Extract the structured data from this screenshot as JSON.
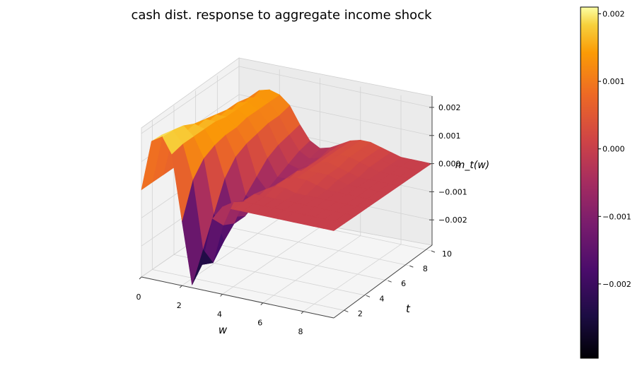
{
  "chart_data": {
    "type": "surface3d",
    "title": "cash dist. response to aggregate income shock",
    "xlabel": "w",
    "ylabel": "t",
    "zlabel": "m_t(w)",
    "xlim": [
      0,
      9.5
    ],
    "ylim": [
      1,
      10
    ],
    "zlim": [
      -0.0031,
      0.0022
    ],
    "xticks": [
      0,
      2,
      4,
      6,
      8
    ],
    "yticks": [
      2,
      4,
      6,
      8,
      10
    ],
    "zticks": [
      -0.002,
      -0.001,
      0.0,
      0.001,
      0.002
    ],
    "zticklabels": [
      "−0.002",
      "−0.001",
      "0.000",
      "0.001",
      "0.002"
    ],
    "colormap": "inferno",
    "colorbar": {
      "range": [
        -0.0031,
        0.0021
      ],
      "ticks": [
        -0.002,
        -0.001,
        0.0,
        0.001,
        0.002
      ],
      "ticklabels": [
        "−0.002",
        "−0.001",
        "0.000",
        "0.001",
        "0.002"
      ]
    },
    "surface": {
      "w_values": [
        0,
        0.5,
        1.0,
        1.5,
        2.0,
        2.5,
        3.0,
        3.5,
        4.0,
        4.5,
        5.0,
        5.5,
        6.0,
        6.5,
        7.0,
        7.5,
        8.0,
        8.5,
        9.0,
        9.5
      ],
      "t_values": [
        1,
        2,
        3,
        4,
        5,
        6,
        7,
        8,
        9,
        10
      ],
      "z": [
        [
          0.0,
          0.0018,
          0.0021,
          0.0015,
          -0.0008,
          -0.003,
          -0.0022,
          -0.0005,
          0.0,
          0.0,
          0.0,
          0.0,
          0.0,
          0.0,
          0.0,
          0.0,
          0.0,
          0.0,
          0.0,
          0.0
        ],
        [
          0.0,
          0.0017,
          0.002,
          0.0016,
          0.0004,
          -0.002,
          -0.0024,
          -0.001,
          -0.0001,
          0.0,
          0.0,
          0.0,
          0.0,
          0.0,
          0.0,
          0.0,
          0.0,
          0.0,
          0.0,
          0.0
        ],
        [
          0.0,
          0.0015,
          0.0019,
          0.0016,
          0.0009,
          -0.001,
          -0.0019,
          -0.0012,
          -0.0003,
          0.0,
          0.0,
          0.0,
          0.0,
          0.0,
          0.0,
          0.0,
          0.0,
          0.0,
          0.0,
          0.0
        ],
        [
          0.0,
          0.0013,
          0.0017,
          0.0016,
          0.0011,
          0.0,
          -0.0013,
          -0.0012,
          -0.0005,
          -0.0001,
          0.0001,
          0.0001,
          0.0,
          0.0,
          0.0,
          0.0,
          0.0,
          0.0,
          0.0,
          0.0
        ],
        [
          0.0,
          0.0012,
          0.0016,
          0.0016,
          0.0012,
          0.0005,
          -0.0008,
          -0.001,
          -0.0006,
          -0.0002,
          0.0001,
          0.0002,
          0.0002,
          0.0001,
          0.0,
          0.0,
          0.0,
          0.0,
          0.0,
          0.0
        ],
        [
          0.0,
          0.0011,
          0.0015,
          0.0015,
          0.0012,
          0.0007,
          -0.0004,
          -0.0008,
          -0.0006,
          -0.0003,
          0.0001,
          0.0002,
          0.0002,
          0.0002,
          0.0001,
          0.0,
          0.0,
          0.0,
          0.0,
          0.0
        ],
        [
          0.0,
          0.001,
          0.0014,
          0.0015,
          0.0013,
          0.0008,
          0.0,
          -0.0006,
          -0.0006,
          -0.0003,
          0.0,
          0.0002,
          0.0003,
          0.0002,
          0.0001,
          0.0,
          0.0,
          0.0,
          0.0,
          0.0
        ],
        [
          0.0,
          0.0009,
          0.0014,
          0.0015,
          0.0013,
          0.0009,
          0.0002,
          -0.0004,
          -0.0005,
          -0.0003,
          0.0,
          0.0002,
          0.0003,
          0.0003,
          0.0002,
          0.0001,
          0.0,
          0.0,
          0.0,
          0.0
        ],
        [
          0.0,
          0.0009,
          0.0013,
          0.0014,
          0.0013,
          0.0009,
          0.0003,
          -0.0002,
          -0.0004,
          -0.0003,
          0.0,
          0.0002,
          0.0003,
          0.0003,
          0.0002,
          0.0001,
          0.0,
          0.0,
          0.0,
          0.0
        ],
        [
          0.0,
          0.0008,
          0.0013,
          0.0014,
          0.0013,
          0.001,
          0.0004,
          -0.0001,
          -0.0003,
          -0.0002,
          0.0,
          0.0002,
          0.0003,
          0.0003,
          0.0002,
          0.0001,
          0.0,
          0.0,
          0.0,
          0.0
        ]
      ]
    }
  }
}
